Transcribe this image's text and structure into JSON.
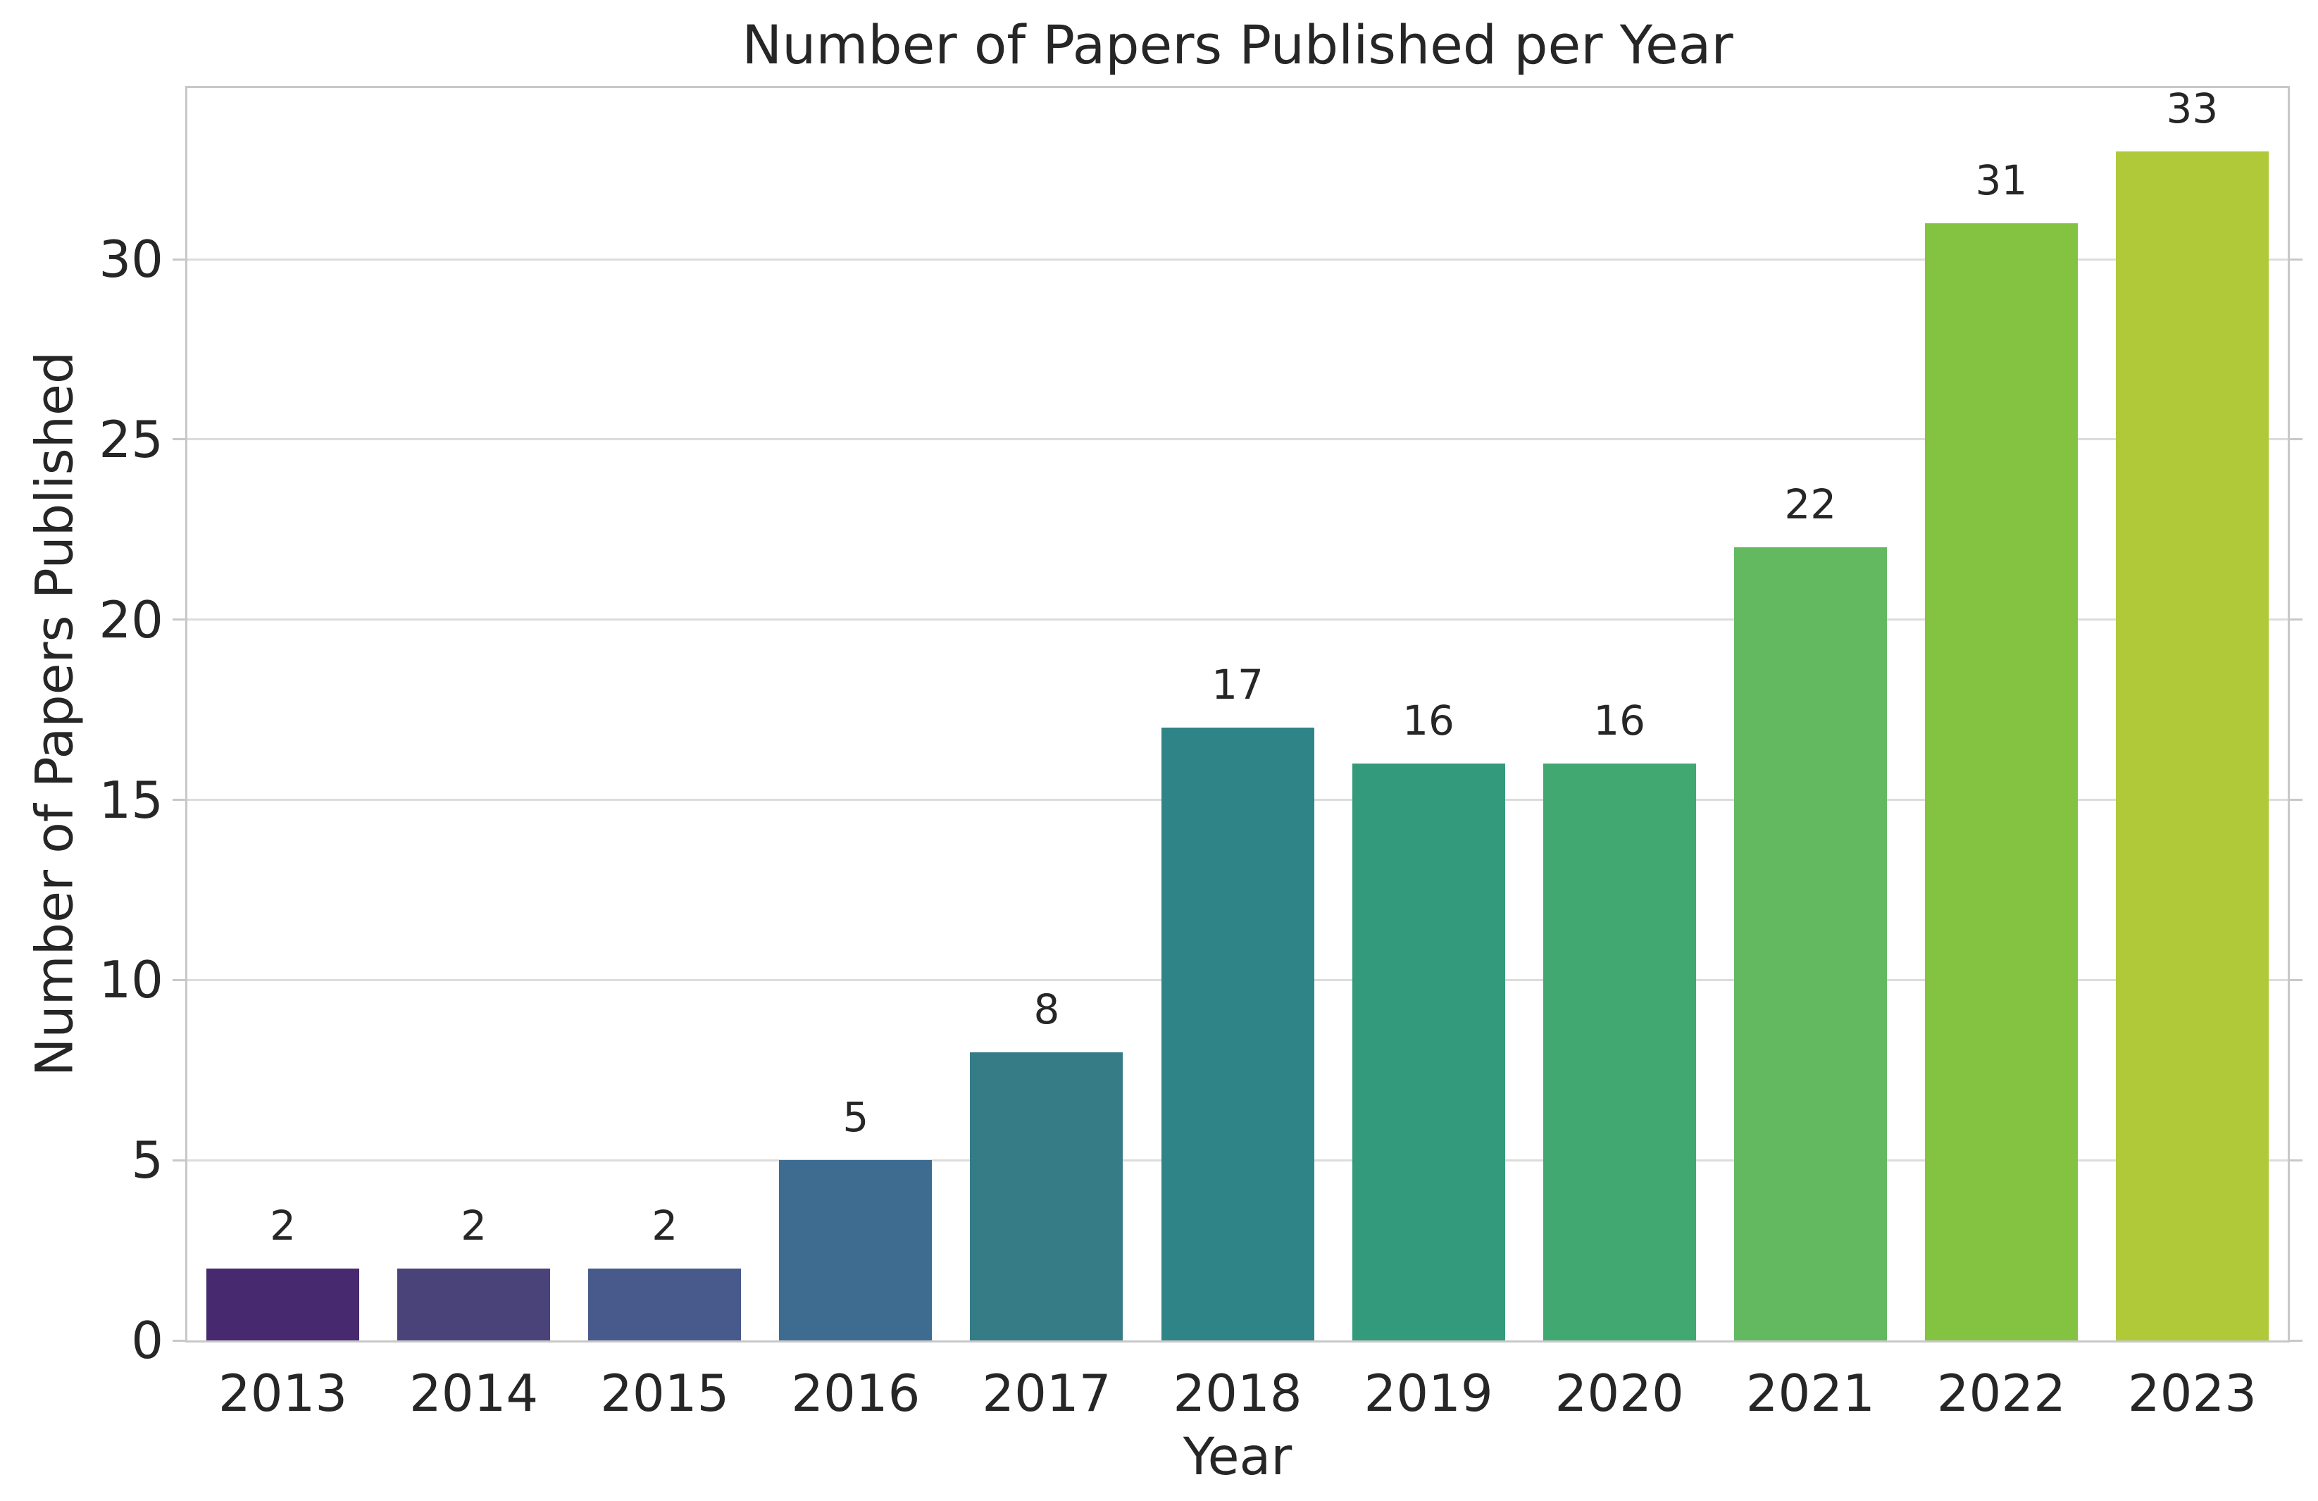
{
  "chart_data": {
    "type": "bar",
    "title": "Number of Papers Published per Year",
    "xlabel": "Year",
    "ylabel": "Number of Papers Published",
    "categories": [
      "2013",
      "2014",
      "2015",
      "2016",
      "2017",
      "2018",
      "2019",
      "2020",
      "2021",
      "2022",
      "2023"
    ],
    "values": [
      2,
      2,
      2,
      5,
      8,
      17,
      16,
      16,
      22,
      31,
      33
    ],
    "bar_colors": [
      "#46296e",
      "#4a4379",
      "#475a8b",
      "#3e6c90",
      "#357c87",
      "#2e8486",
      "#339a7c",
      "#42a872",
      "#63b95f",
      "#83c341",
      "#b0c938"
    ],
    "show_value_labels": true,
    "yticks": [
      0,
      5,
      10,
      15,
      20,
      25,
      30
    ],
    "ylim": [
      0,
      34.75
    ],
    "grid": "horizontal",
    "legend_position": "none"
  },
  "style": {
    "background": "#ffffff",
    "text_color": "#262626",
    "spine_color": "#c8c8c8",
    "grid_color": "#dcdcdc"
  }
}
